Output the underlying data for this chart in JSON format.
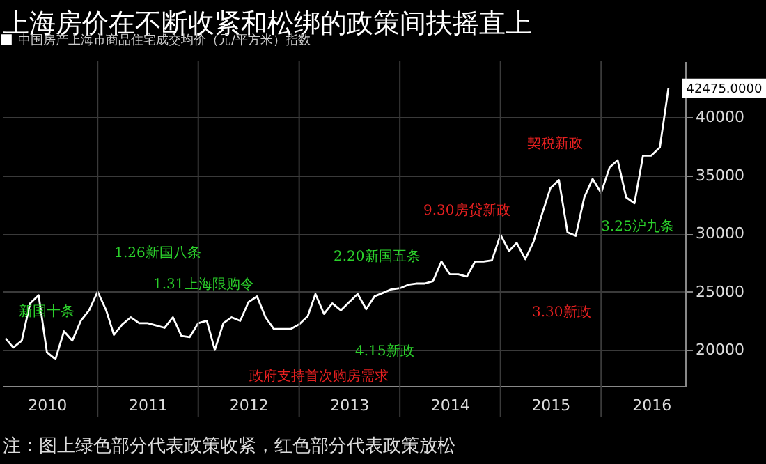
{
  "chart_data": {
    "type": "line",
    "title": "上海房价在不断收紧和松绑的政策间扶摇直上",
    "x": [
      "2010-02",
      "2010-03",
      "2010-04",
      "2010-05",
      "2010-06",
      "2010-07",
      "2010-08",
      "2010-09",
      "2010-10",
      "2010-11",
      "2010-12",
      "2011-01",
      "2011-02",
      "2011-03",
      "2011-04",
      "2011-05",
      "2011-06",
      "2011-07",
      "2011-08",
      "2011-09",
      "2011-10",
      "2011-11",
      "2011-12",
      "2012-01",
      "2012-02",
      "2012-03",
      "2012-04",
      "2012-05",
      "2012-06",
      "2012-07",
      "2012-08",
      "2012-09",
      "2012-10",
      "2012-11",
      "2012-12",
      "2013-01",
      "2013-02",
      "2013-03",
      "2013-04",
      "2013-05",
      "2013-06",
      "2013-07",
      "2013-08",
      "2013-09",
      "2013-10",
      "2013-11",
      "2013-12",
      "2014-01",
      "2014-02",
      "2014-03",
      "2014-04",
      "2014-05",
      "2014-06",
      "2014-07",
      "2014-08",
      "2014-09",
      "2014-10",
      "2014-11",
      "2014-12",
      "2015-01",
      "2015-02",
      "2015-03",
      "2015-04",
      "2015-05",
      "2015-06",
      "2015-07",
      "2015-08",
      "2015-09",
      "2015-10",
      "2015-11",
      "2015-12",
      "2016-01",
      "2016-02",
      "2016-03",
      "2016-04",
      "2016-05",
      "2016-06",
      "2016-07",
      "2016-08",
      "2016-09"
    ],
    "series": [
      {
        "name": "中国房产上海市商品住宅成交均价（元/平方米）指数",
        "color": "#ffffff",
        "values": [
          21000,
          20200,
          20800,
          24000,
          24700,
          19800,
          19200,
          21600,
          20800,
          22500,
          23400,
          25000,
          23400,
          21300,
          22200,
          22800,
          22300,
          22300,
          22100,
          21900,
          22800,
          21200,
          21100,
          22300,
          22500,
          20000,
          22300,
          22800,
          22500,
          24100,
          24600,
          22800,
          21800,
          21800,
          21800,
          22200,
          22900,
          24800,
          23100,
          24000,
          23400,
          24100,
          24800,
          23500,
          24600,
          24900,
          25200,
          25300,
          25600,
          25700,
          25700,
          25900,
          27600,
          26500,
          26500,
          26300,
          27600,
          27600,
          27700,
          29900,
          28500,
          29200,
          27800,
          29300,
          31700,
          33900,
          34600,
          30100,
          29800,
          33100,
          34700,
          33500,
          35700,
          36300,
          33100,
          32600,
          36700,
          36700,
          37400,
          42475
        ],
        "value_labels": [
          null,
          null,
          null,
          null,
          null,
          null,
          null,
          null,
          null,
          null,
          null,
          null,
          null,
          null,
          null,
          null,
          null,
          null,
          null,
          null,
          null,
          null,
          null,
          null,
          null,
          null,
          null,
          null,
          null,
          null,
          null,
          null,
          null,
          null,
          null,
          null,
          null,
          null,
          null,
          null,
          null,
          null,
          null,
          null,
          null,
          null,
          null,
          null,
          null,
          null,
          null,
          null,
          null,
          null,
          null,
          null,
          null,
          null,
          null,
          null,
          null,
          null,
          null,
          null,
          null,
          null,
          null,
          null,
          null,
          null,
          null,
          null,
          null,
          null,
          null,
          null,
          null,
          null,
          null,
          "42475.0000"
        ]
      }
    ],
    "xlim": [
      "2010-01-22",
      "2016-11-01"
    ],
    "xticks": [
      {
        "value": "2010-07-01",
        "label": "2010"
      },
      {
        "value": "2011-01-01",
        "label": null
      },
      {
        "value": "2011-07-01",
        "label": "2011"
      },
      {
        "value": "2012-01-01",
        "label": null
      },
      {
        "value": "2012-07-01",
        "label": "2012"
      },
      {
        "value": "2013-01-01",
        "label": null
      },
      {
        "value": "2013-07-01",
        "label": "2013"
      },
      {
        "value": "2014-01-01",
        "label": null
      },
      {
        "value": "2014-07-01",
        "label": "2014"
      },
      {
        "value": "2015-01-01",
        "label": null
      },
      {
        "value": "2015-07-01",
        "label": "2015"
      },
      {
        "value": "2016-01-01",
        "label": null
      },
      {
        "value": "2016-07-01",
        "label": "2016"
      }
    ],
    "ylim": [
      16900,
      44800
    ],
    "yticks": [
      20000,
      25000,
      30000,
      35000,
      40000
    ],
    "grid": true,
    "legend": "top left",
    "annotations": [
      {
        "text": "新国十条",
        "x": "2010-05",
        "y": 24000
      },
      {
        "text": "1.26新国八条",
        "x": "2011-01",
        "y": 25000
      },
      "1.31上海限购令",
      {
        "text": "2.20新国五条",
        "x": "2013-03",
        "y": 24800
      },
      "4.15新政",
      {
        "text": "政府支持首次购房需求",
        "x": "2012-03",
        "y": 20000
      },
      "9.30房贷新政",
      "3.30新政",
      {
        "text": "契税新政",
        "x": "2016-03",
        "y": 36300
      },
      {
        "text": "3.25沪九条",
        "x": "2016-01",
        "y": 33500
      },
      "注：图上绿色部分代表政策收紧，红色部分代表政策放松"
    ]
  }
}
